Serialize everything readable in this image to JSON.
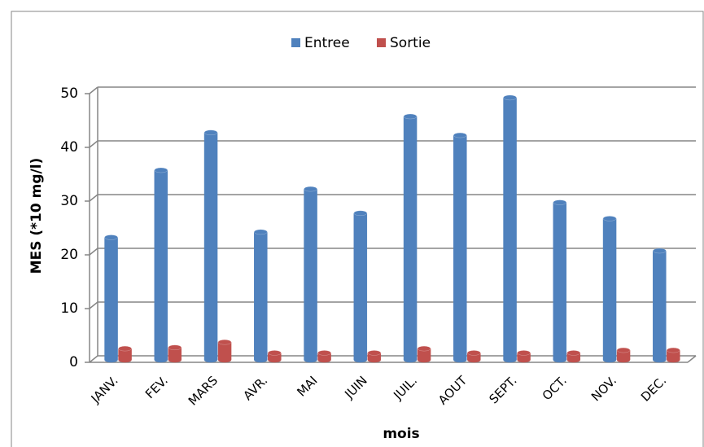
{
  "chart_data": {
    "type": "bar3d",
    "x_label": "mois",
    "y_label": "MES (*10 mg/l)",
    "categories": [
      "JANV.",
      "FEV.",
      "MARS",
      "AVR.",
      "MAI",
      "JUIN",
      "JUIL.",
      "AOUT",
      "SEPT.",
      "OCT.",
      "NOV.",
      "DEC."
    ],
    "series": [
      {
        "name": "Entree",
        "color": "#4f81bd",
        "values": [
          22.5,
          35,
          42,
          23.5,
          31.5,
          27,
          45,
          41.5,
          48.5,
          29,
          26,
          20
        ]
      },
      {
        "name": "Sortie",
        "color": "#c0504d",
        "values": [
          1.8,
          2,
          3,
          1,
          1,
          1,
          1.8,
          1,
          1,
          1,
          1.5,
          1.5
        ]
      }
    ],
    "ylim": [
      0,
      50
    ],
    "yticks": [
      0,
      10,
      20,
      30,
      40,
      50
    ],
    "grid": true,
    "legend": "top"
  }
}
